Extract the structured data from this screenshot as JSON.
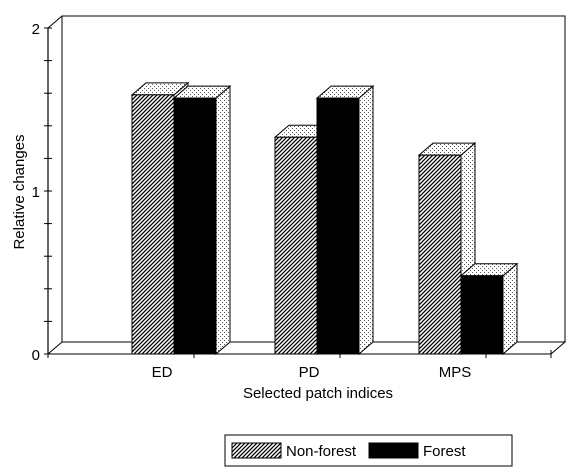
{
  "chart_data": {
    "type": "bar",
    "categories": [
      "ED",
      "PD",
      "MPS"
    ],
    "series": [
      {
        "name": "Non-forest",
        "values": [
          1.59,
          1.33,
          1.22
        ],
        "pattern": "diagonal-hatch"
      },
      {
        "name": "Forest",
        "values": [
          1.57,
          1.57,
          0.48
        ],
        "pattern": "solid"
      }
    ],
    "xlabel": "Selected patch indices",
    "ylabel": "Relative changes",
    "ylim": [
      0,
      2
    ],
    "yticks": [
      {
        "value": 0,
        "label": "0"
      },
      {
        "value": 1,
        "label": "1"
      },
      {
        "value": 2,
        "label": "2"
      }
    ],
    "minor_tick_step": 0.2,
    "grid": false,
    "legend_position": "bottom-center",
    "style": "3d"
  }
}
